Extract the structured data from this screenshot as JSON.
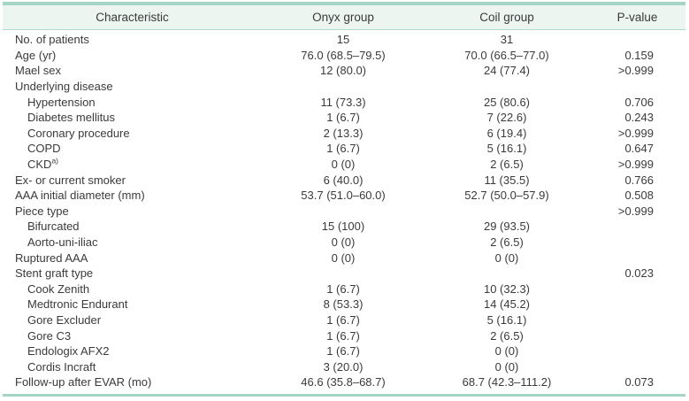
{
  "table": {
    "columns": [
      {
        "key": "characteristic",
        "label": "Characteristic"
      },
      {
        "key": "onyx",
        "label": "Onyx group"
      },
      {
        "key": "coil",
        "label": "Coil group"
      },
      {
        "key": "p",
        "label": "P-value"
      }
    ],
    "rows": [
      {
        "label": "No. of patients",
        "indent": false,
        "sup": "",
        "onyx": "15",
        "coil": "31",
        "p": ""
      },
      {
        "label": "Age (yr)",
        "indent": false,
        "sup": "",
        "onyx": "76.0 (68.5–79.5)",
        "coil": "70.0 (66.5–77.0)",
        "p": "0.159"
      },
      {
        "label": "Mael sex",
        "indent": false,
        "sup": "",
        "onyx": "12 (80.0)",
        "coil": "24 (77.4)",
        "p": ">0.999"
      },
      {
        "label": "Underlying disease",
        "indent": false,
        "sup": "",
        "onyx": "",
        "coil": "",
        "p": ""
      },
      {
        "label": "Hypertension",
        "indent": true,
        "sup": "",
        "onyx": "11 (73.3)",
        "coil": "25 (80.6)",
        "p": "0.706"
      },
      {
        "label": "Diabetes mellitus",
        "indent": true,
        "sup": "",
        "onyx": "1 (6.7)",
        "coil": "7 (22.6)",
        "p": "0.243"
      },
      {
        "label": "Coronary procedure",
        "indent": true,
        "sup": "",
        "onyx": "2 (13.3)",
        "coil": "6 (19.4)",
        "p": ">0.999"
      },
      {
        "label": "COPD",
        "indent": true,
        "sup": "",
        "onyx": "1 (6.7)",
        "coil": "5 (16.1)",
        "p": "0.647"
      },
      {
        "label": "CKD",
        "indent": true,
        "sup": "a)",
        "onyx": "0 (0)",
        "coil": "2 (6.5)",
        "p": ">0.999"
      },
      {
        "label": "Ex- or current smoker",
        "indent": false,
        "sup": "",
        "onyx": "6 (40.0)",
        "coil": "11 (35.5)",
        "p": "0.766"
      },
      {
        "label": "AAA initial diameter (mm)",
        "indent": false,
        "sup": "",
        "onyx": "53.7 (51.0–60.0)",
        "coil": "52.7 (50.0–57.9)",
        "p": "0.508"
      },
      {
        "label": "Piece type",
        "indent": false,
        "sup": "",
        "onyx": "",
        "coil": "",
        "p": ">0.999"
      },
      {
        "label": "Bifurcated",
        "indent": true,
        "sup": "",
        "onyx": "15 (100)",
        "coil": "29 (93.5)",
        "p": ""
      },
      {
        "label": "Aorto-uni-iliac",
        "indent": true,
        "sup": "",
        "onyx": "0 (0)",
        "coil": "2 (6.5)",
        "p": ""
      },
      {
        "label": "Ruptured AAA",
        "indent": false,
        "sup": "",
        "onyx": "0 (0)",
        "coil": "0 (0)",
        "p": ""
      },
      {
        "label": "Stent graft type",
        "indent": false,
        "sup": "",
        "onyx": "",
        "coil": "",
        "p": "0.023"
      },
      {
        "label": "Cook Zenith",
        "indent": true,
        "sup": "",
        "onyx": "1 (6.7)",
        "coil": "10 (32.3)",
        "p": ""
      },
      {
        "label": "Medtronic Endurant",
        "indent": true,
        "sup": "",
        "onyx": "8 (53.3)",
        "coil": "14 (45.2)",
        "p": ""
      },
      {
        "label": "Gore Excluder",
        "indent": true,
        "sup": "",
        "onyx": "1 (6.7)",
        "coil": "5 (16.1)",
        "p": ""
      },
      {
        "label": "Gore C3",
        "indent": true,
        "sup": "",
        "onyx": "1 (6.7)",
        "coil": "2 (6.5)",
        "p": ""
      },
      {
        "label": "Endologix AFX2",
        "indent": true,
        "sup": "",
        "onyx": "1 (6.7)",
        "coil": "0 (0)",
        "p": ""
      },
      {
        "label": "Cordis Incraft",
        "indent": true,
        "sup": "",
        "onyx": "3 (20.0)",
        "coil": "0 (0)",
        "p": ""
      },
      {
        "label": "Follow-up after EVAR (mo)",
        "indent": false,
        "sup": "",
        "onyx": "46.6 (35.8–68.7)",
        "coil": "68.7 (42.3–111.2)",
        "p": "0.073"
      }
    ],
    "colors": {
      "rule_teal": "#a4d4c6",
      "header_bg": "#edf5f1",
      "header_underline": "#b0dacd",
      "text": "#3a3a3a"
    }
  }
}
